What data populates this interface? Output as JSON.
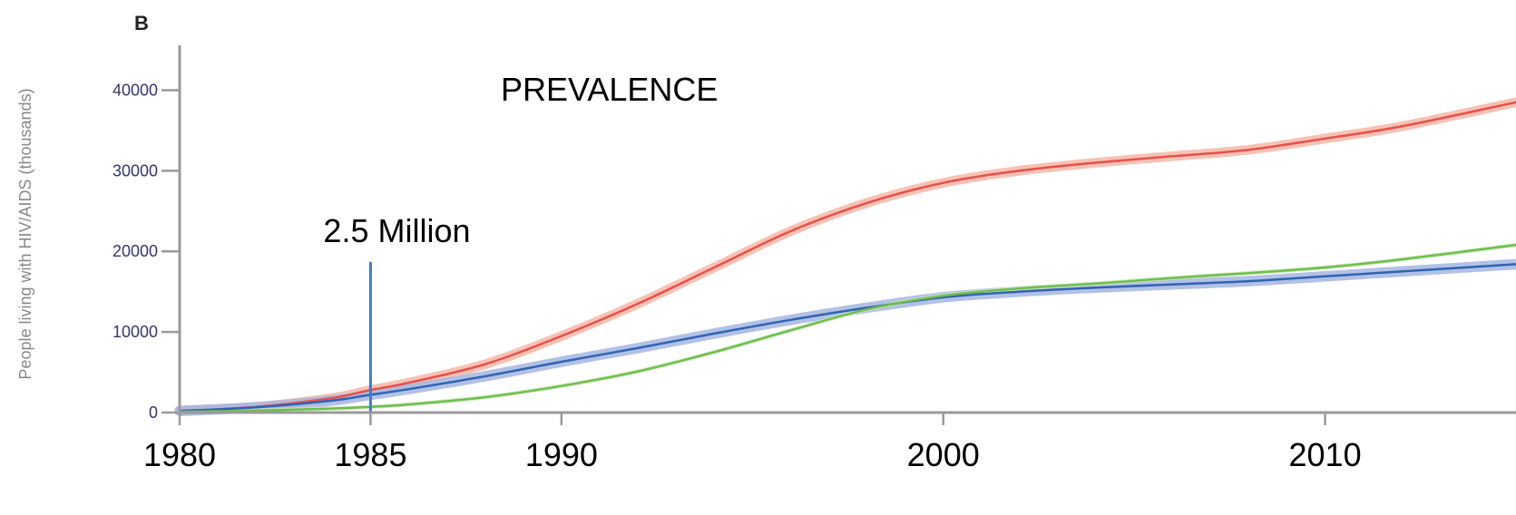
{
  "panel_label": "B",
  "chart_data": {
    "type": "line",
    "title": "PREVALENCE",
    "ylabel": "People living with HIV/AIDS (thousands)",
    "xlabel": "",
    "xlim": [
      1980,
      2015
    ],
    "ylim": [
      0,
      45000
    ],
    "x_ticks": [
      1980,
      1985,
      1990,
      2000,
      2010
    ],
    "x_tick_labels": [
      "1980",
      "1985",
      "1990",
      "2000",
      "2010"
    ],
    "y_ticks": [
      0,
      10000,
      20000,
      30000,
      40000
    ],
    "y_tick_labels": [
      "0",
      "10000",
      "20000",
      "30000",
      "40000"
    ],
    "grid": false,
    "series": [
      {
        "color": "#e8504a",
        "band_color": "#f5b7a8",
        "band_width": 1200,
        "x": [
          1980,
          1982,
          1984,
          1985,
          1986,
          1988,
          1990,
          1992,
          1994,
          1996,
          1998,
          2000,
          2002,
          2004,
          2006,
          2008,
          2010,
          2012,
          2015
        ],
        "values": [
          200,
          700,
          1800,
          2800,
          3700,
          6000,
          9500,
          13500,
          18000,
          22500,
          26000,
          28500,
          30000,
          31000,
          31800,
          32600,
          34000,
          35500,
          38500
        ]
      },
      {
        "color": "#2f64b4",
        "band_color": "#a6b6e0",
        "band_width": 1300,
        "x": [
          1980,
          1982,
          1984,
          1985,
          1986,
          1988,
          1990,
          1992,
          1994,
          1996,
          1998,
          2000,
          2002,
          2004,
          2006,
          2008,
          2010,
          2012,
          2015
        ],
        "values": [
          200,
          650,
          1500,
          2200,
          2900,
          4500,
          6300,
          8000,
          9800,
          11500,
          13000,
          14300,
          15000,
          15500,
          15900,
          16300,
          16900,
          17500,
          18400
        ]
      },
      {
        "color": "#6fbf4e",
        "band_color": "#c9e6b6",
        "band_width": 500,
        "x": [
          1980,
          1982,
          1984,
          1985,
          1986,
          1988,
          1990,
          1992,
          1994,
          1996,
          1998,
          2000,
          2002,
          2004,
          2006,
          2008,
          2010,
          2012,
          2015
        ],
        "values": [
          100,
          250,
          500,
          700,
          1000,
          1900,
          3300,
          5100,
          7500,
          10200,
          12800,
          14500,
          15400,
          16000,
          16700,
          17300,
          18000,
          19000,
          20800
        ]
      }
    ],
    "annotations": [
      {
        "text": "2.5 Million",
        "x": 1985,
        "line_from": 0,
        "line_to": 18700,
        "color": "#4a7ac2"
      }
    ]
  }
}
